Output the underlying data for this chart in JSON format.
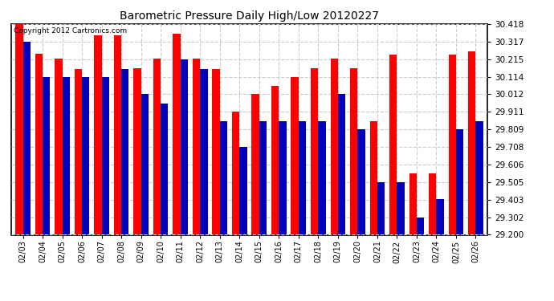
{
  "title": "Barometric Pressure Daily High/Low 20120227",
  "copyright": "Copyright 2012 Cartronics.com",
  "dates": [
    "02/03",
    "02/04",
    "02/05",
    "02/06",
    "02/07",
    "02/08",
    "02/09",
    "02/10",
    "02/11",
    "02/12",
    "02/13",
    "02/14",
    "02/15",
    "02/16",
    "02/17",
    "02/18",
    "02/19",
    "02/20",
    "02/21",
    "02/22",
    "02/23",
    "02/24",
    "02/25",
    "02/26"
  ],
  "highs": [
    30.418,
    30.248,
    30.22,
    30.16,
    30.355,
    30.355,
    30.162,
    30.22,
    30.36,
    30.22,
    30.16,
    29.911,
    30.012,
    30.062,
    30.114,
    30.165,
    30.22,
    30.165,
    29.855,
    30.24,
    29.555,
    29.555,
    30.24,
    30.26
  ],
  "lows": [
    30.317,
    30.114,
    30.114,
    30.114,
    30.114,
    30.16,
    30.012,
    29.96,
    30.215,
    30.16,
    29.855,
    29.708,
    29.855,
    29.855,
    29.855,
    29.855,
    30.012,
    29.809,
    29.505,
    29.505,
    29.302,
    29.408,
    29.809,
    29.855
  ],
  "ylim": [
    29.2,
    30.418
  ],
  "yticks": [
    29.2,
    29.302,
    29.403,
    29.505,
    29.606,
    29.708,
    29.809,
    29.911,
    30.012,
    30.114,
    30.215,
    30.317,
    30.418
  ],
  "high_color": "#FF0000",
  "low_color": "#0000BB",
  "bg_color": "#FFFFFF",
  "grid_color": "#CCCCCC",
  "bar_width": 0.38,
  "figwidth": 6.9,
  "figheight": 3.75,
  "dpi": 100
}
